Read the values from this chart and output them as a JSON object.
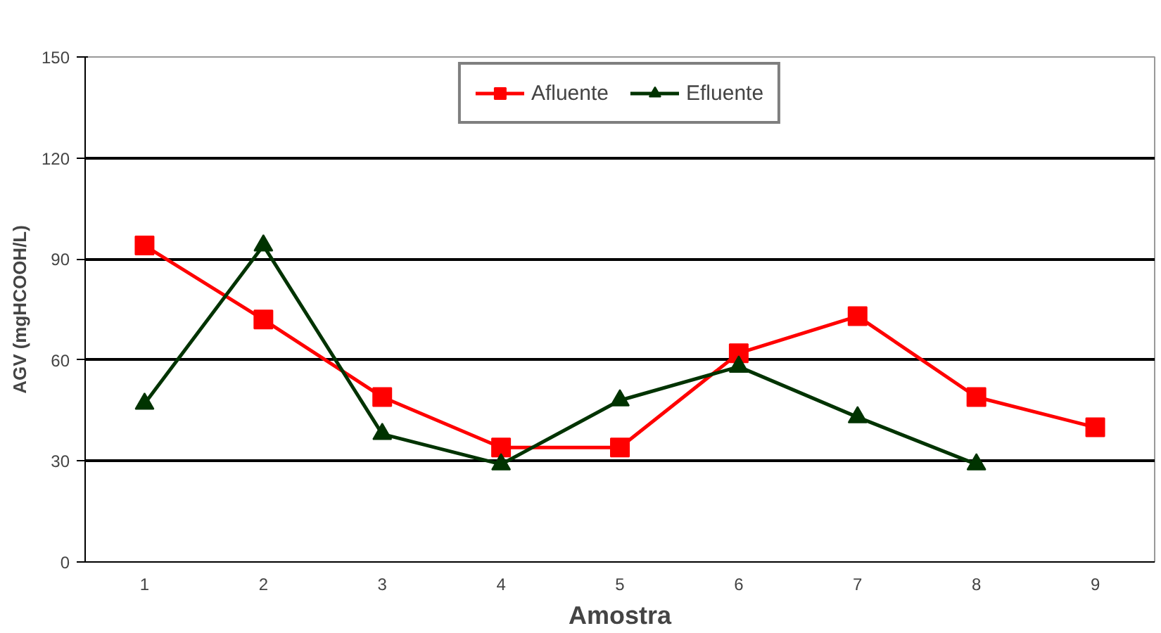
{
  "chart_data": {
    "type": "line",
    "xlabel": "Amostra",
    "ylabel": "AGV (mgHCOOH/L)",
    "categories": [
      "1",
      "2",
      "3",
      "4",
      "5",
      "6",
      "7",
      "8",
      "9"
    ],
    "series": [
      {
        "name": "Afluente",
        "color": "#ff0000",
        "marker": "square",
        "values": [
          94,
          72,
          49,
          34,
          34,
          62,
          73,
          49,
          40
        ]
      },
      {
        "name": "Efluente",
        "color": "#003300",
        "marker": "triangle",
        "values": [
          47,
          94,
          38,
          29,
          48,
          58,
          43,
          29,
          null
        ]
      }
    ],
    "ylim": [
      0,
      150
    ],
    "yticks": [
      0,
      30,
      60,
      90,
      120,
      150
    ],
    "grid": "y",
    "legend": "top"
  }
}
